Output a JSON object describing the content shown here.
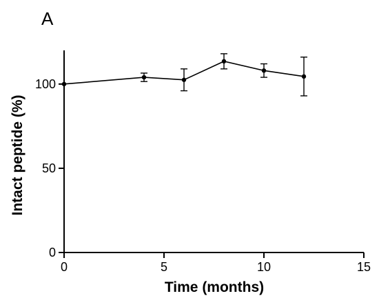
{
  "panel_label": "A",
  "chart_data": {
    "type": "line",
    "xlabel": "Time (months)",
    "ylabel": "Intact peptide (%)",
    "xlim": [
      0,
      15
    ],
    "ylim": [
      0,
      120
    ],
    "xticks": [
      0,
      5,
      10,
      15
    ],
    "yticks": [
      0,
      50,
      100
    ],
    "grid": false,
    "series": [
      {
        "x": [
          0,
          4,
          6,
          8,
          10,
          12
        ],
        "y": [
          100,
          104,
          102.5,
          113.5,
          108,
          104.5
        ],
        "error": [
          0,
          2.5,
          6.5,
          4.5,
          4,
          11.5
        ],
        "color": "#000000",
        "marker": "circle"
      }
    ]
  }
}
